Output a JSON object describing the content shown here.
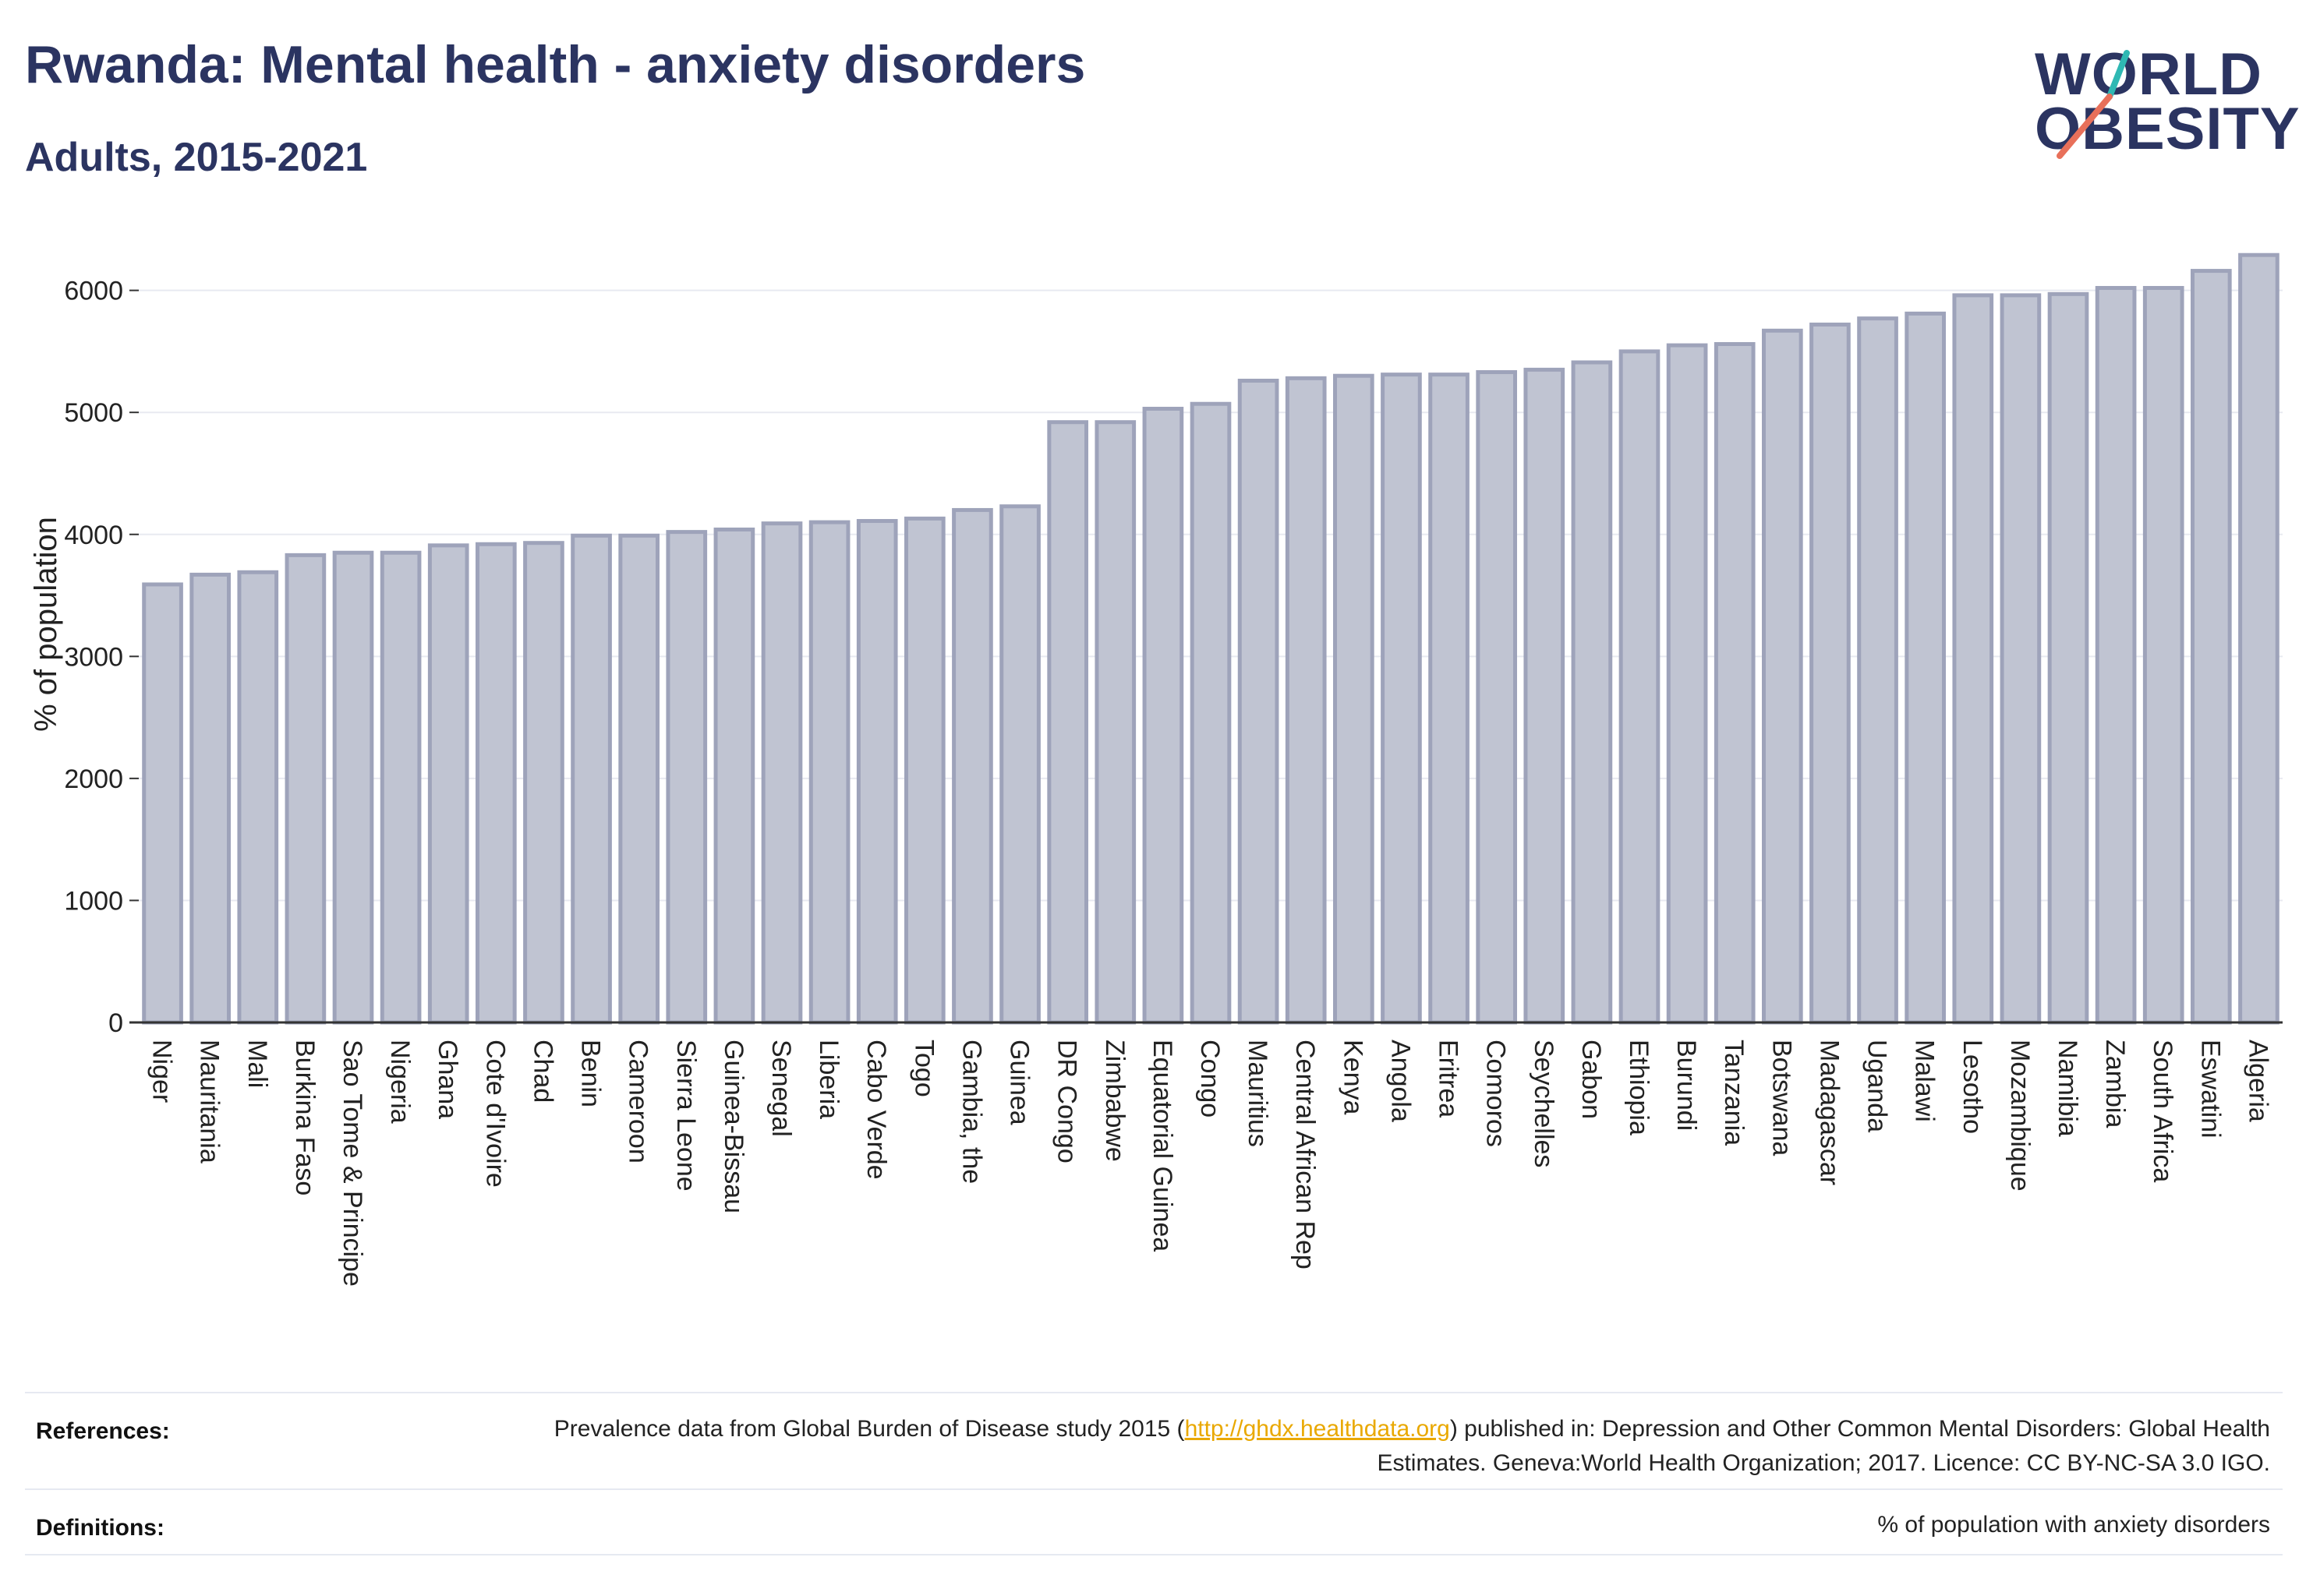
{
  "header": {
    "title": "Rwanda: Mental health - anxiety disorders",
    "subtitle": "Adults, 2015-2021"
  },
  "logo": {
    "line1": "WORLD",
    "line2": "OBESITY",
    "accent_colors": [
      "#2fb8b3",
      "#e8705a"
    ]
  },
  "chart_data": {
    "type": "bar",
    "ylabel": "% of population",
    "xlabel": "",
    "ylim": [
      0,
      6400
    ],
    "yticks": [
      0,
      1000,
      2000,
      3000,
      4000,
      5000,
      6000
    ],
    "grid": true,
    "bar_color": "#c0c4d2",
    "bar_edge_color": "#9ea3ba",
    "categories": [
      "Niger",
      "Mauritania",
      "Mali",
      "Burkina Faso",
      "Sao Tome & Principe",
      "Nigeria",
      "Ghana",
      "Cote d'Ivoire",
      "Chad",
      "Benin",
      "Cameroon",
      "Sierra Leone",
      "Guinea-Bissau",
      "Senegal",
      "Liberia",
      "Cabo Verde",
      "Togo",
      "Gambia, the",
      "Guinea",
      "DR Congo",
      "Zimbabwe",
      "Equatorial Guinea",
      "Congo",
      "Mauritius",
      "Central African Rep",
      "Kenya",
      "Angola",
      "Eritrea",
      "Comoros",
      "Seychelles",
      "Gabon",
      "Ethiopia",
      "Burundi",
      "Tanzania",
      "Botswana",
      "Madagascar",
      "Uganda",
      "Malawi",
      "Lesotho",
      "Mozambique",
      "Namibia",
      "Zambia",
      "South Africa",
      "Eswatini",
      "Algeria"
    ],
    "values": [
      3590,
      3670,
      3690,
      3830,
      3850,
      3850,
      3910,
      3920,
      3930,
      3990,
      3990,
      4020,
      4040,
      4090,
      4100,
      4110,
      4130,
      4200,
      4230,
      4920,
      4920,
      5030,
      5070,
      5260,
      5280,
      5300,
      5310,
      5310,
      5330,
      5350,
      5410,
      5500,
      5550,
      5560,
      5670,
      5720,
      5770,
      5810,
      5960,
      5960,
      5970,
      6020,
      6020,
      6160,
      6290
    ]
  },
  "footer": {
    "references_label": "References:",
    "references_pre": "Prevalence data from Global Burden of Disease study 2015 (",
    "references_link": "http://ghdx.healthdata.org",
    "references_post": ") published in: Depression and Other Common Mental Disorders: Global Health Estimates. Geneva:World Health Organization; 2017. Licence: CC BY-NC-SA 3.0 IGO.",
    "definitions_label": "Definitions:",
    "definitions_text": "% of population with anxiety disorders"
  }
}
